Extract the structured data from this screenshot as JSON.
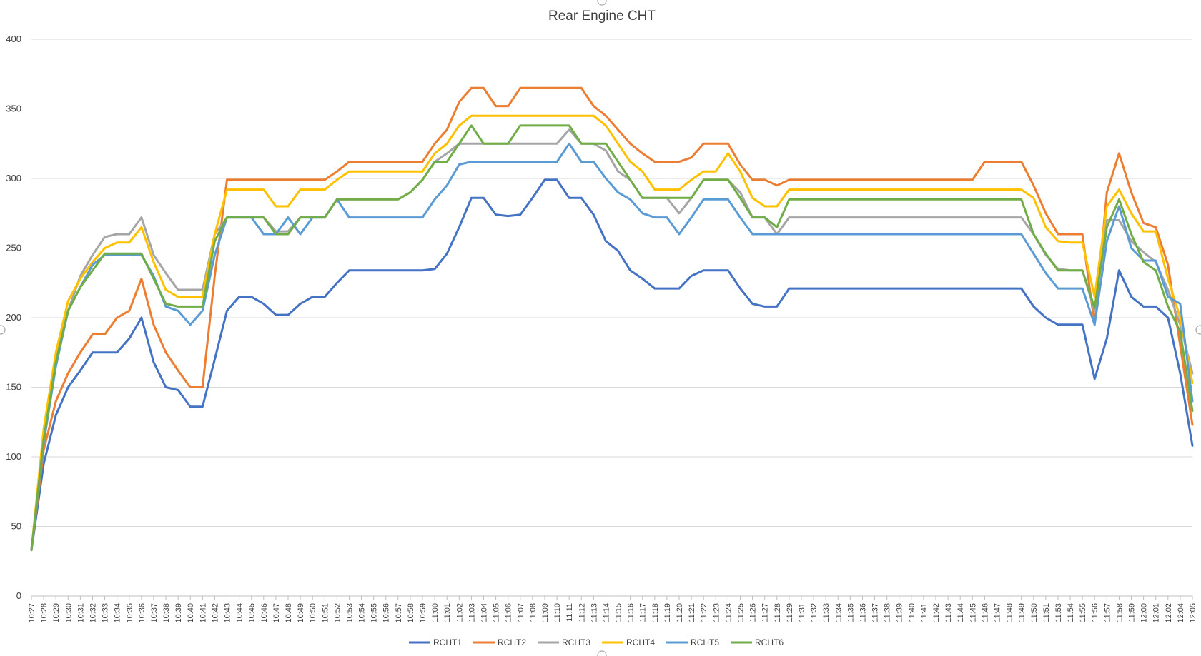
{
  "chart_data": {
    "type": "line",
    "title": "Rear Engine CHT",
    "xlabel": "",
    "ylabel": "",
    "ylim": [
      0,
      400
    ],
    "yticks": [
      0,
      50,
      100,
      150,
      200,
      250,
      300,
      350,
      400
    ],
    "grid": true,
    "legend_position": "bottom",
    "categories": [
      "10:27",
      "10:28",
      "10:29",
      "10:30",
      "10:31",
      "10:32",
      "10:33",
      "10:34",
      "10:35",
      "10:36",
      "10:37",
      "10:38",
      "10:39",
      "10:40",
      "10:41",
      "10:42",
      "10:43",
      "10:44",
      "10:45",
      "10:46",
      "10:47",
      "10:48",
      "10:49",
      "10:50",
      "10:51",
      "10:52",
      "10:53",
      "10:54",
      "10:55",
      "10:56",
      "10:57",
      "10:58",
      "10:59",
      "11:00",
      "11:01",
      "11:02",
      "11:03",
      "11:04",
      "11:05",
      "11:06",
      "11:07",
      "11:08",
      "11:09",
      "11:10",
      "11:11",
      "11:12",
      "11:13",
      "11:14",
      "11:15",
      "11:16",
      "11:17",
      "11:18",
      "11:19",
      "11:20",
      "11:21",
      "11:22",
      "11:23",
      "11:24",
      "11:25",
      "11:26",
      "11:27",
      "11:28",
      "11:29",
      "11:31",
      "11:32",
      "11:33",
      "11:34",
      "11:35",
      "11:36",
      "11:37",
      "11:38",
      "11:39",
      "11:40",
      "11:41",
      "11:42",
      "11:43",
      "11:44",
      "11:45",
      "11:46",
      "11:47",
      "11:48",
      "11:49",
      "11:50",
      "11:51",
      "11:53",
      "11:54",
      "11:55",
      "11:56",
      "11:57",
      "11:58",
      "11:59",
      "12:00",
      "12:01",
      "12:02",
      "12:04",
      "12:05"
    ],
    "series": [
      {
        "name": "RCHT1",
        "color": "#4472c4",
        "values": [
          33,
          95,
          130,
          150,
          162,
          175,
          175,
          175,
          185,
          200,
          168,
          150,
          148,
          136,
          136,
          170,
          205,
          215,
          215,
          210,
          202,
          202,
          210,
          215,
          215,
          225,
          234,
          234,
          234,
          234,
          234,
          234,
          234,
          235,
          246,
          265,
          286,
          286,
          274,
          273,
          274,
          286,
          299,
          299,
          286,
          286,
          274,
          255,
          248,
          234,
          228,
          221,
          221,
          221,
          230,
          234,
          234,
          234,
          221,
          210,
          208,
          208,
          221,
          221,
          221,
          221,
          221,
          221,
          221,
          221,
          221,
          221,
          221,
          221,
          221,
          221,
          221,
          221,
          221,
          221,
          221,
          221,
          208,
          200,
          195,
          195,
          195,
          156,
          185,
          234,
          215,
          208,
          208,
          200,
          160,
          108
        ]
      },
      {
        "name": "RCHT2",
        "color": "#ed7d31",
        "values": [
          33,
          105,
          140,
          160,
          175,
          188,
          188,
          200,
          205,
          228,
          195,
          175,
          162,
          150,
          150,
          230,
          299,
          299,
          299,
          299,
          299,
          299,
          299,
          299,
          299,
          305,
          312,
          312,
          312,
          312,
          312,
          312,
          312,
          325,
          335,
          355,
          365,
          365,
          352,
          352,
          365,
          365,
          365,
          365,
          365,
          365,
          352,
          345,
          335,
          325,
          318,
          312,
          312,
          312,
          315,
          325,
          325,
          325,
          310,
          299,
          299,
          295,
          299,
          299,
          299,
          299,
          299,
          299,
          299,
          299,
          299,
          299,
          299,
          299,
          299,
          299,
          299,
          299,
          312,
          312,
          312,
          312,
          295,
          275,
          260,
          260,
          260,
          195,
          290,
          318,
          290,
          268,
          265,
          238,
          180,
          123
        ]
      },
      {
        "name": "RCHT3",
        "color": "#a5a5a5",
        "values": [
          33,
          115,
          170,
          205,
          230,
          245,
          258,
          260,
          260,
          272,
          245,
          232,
          220,
          220,
          220,
          260,
          272,
          272,
          272,
          272,
          262,
          262,
          272,
          272,
          272,
          285,
          285,
          285,
          285,
          285,
          285,
          290,
          299,
          312,
          318,
          325,
          325,
          325,
          325,
          325,
          325,
          325,
          325,
          325,
          335,
          325,
          325,
          320,
          305,
          299,
          286,
          286,
          286,
          275,
          286,
          299,
          299,
          299,
          290,
          272,
          272,
          260,
          272,
          272,
          272,
          272,
          272,
          272,
          272,
          272,
          272,
          272,
          272,
          272,
          272,
          272,
          272,
          272,
          272,
          272,
          272,
          272,
          260,
          245,
          235,
          234,
          234,
          205,
          270,
          270,
          255,
          247,
          240,
          220,
          195,
          160
        ]
      },
      {
        "name": "RCHT4",
        "color": "#ffc000",
        "values": [
          33,
          120,
          175,
          212,
          228,
          240,
          250,
          254,
          254,
          265,
          240,
          220,
          215,
          215,
          215,
          260,
          292,
          292,
          292,
          292,
          280,
          280,
          292,
          292,
          292,
          299,
          305,
          305,
          305,
          305,
          305,
          305,
          305,
          318,
          325,
          338,
          345,
          345,
          345,
          345,
          345,
          345,
          345,
          345,
          345,
          345,
          345,
          338,
          325,
          312,
          305,
          292,
          292,
          292,
          299,
          305,
          305,
          318,
          305,
          286,
          280,
          280,
          292,
          292,
          292,
          292,
          292,
          292,
          292,
          292,
          292,
          292,
          292,
          292,
          292,
          292,
          292,
          292,
          292,
          292,
          292,
          292,
          286,
          265,
          255,
          254,
          254,
          215,
          280,
          292,
          275,
          262,
          262,
          228,
          200,
          153
        ]
      },
      {
        "name": "RCHT5",
        "color": "#5b9bd5",
        "values": [
          33,
          110,
          165,
          205,
          222,
          238,
          245,
          245,
          245,
          245,
          230,
          208,
          205,
          195,
          205,
          245,
          272,
          272,
          272,
          260,
          260,
          272,
          260,
          272,
          272,
          285,
          272,
          272,
          272,
          272,
          272,
          272,
          272,
          285,
          295,
          310,
          312,
          312,
          312,
          312,
          312,
          312,
          312,
          312,
          325,
          312,
          312,
          300,
          290,
          285,
          275,
          272,
          272,
          260,
          272,
          285,
          285,
          285,
          272,
          260,
          260,
          260,
          260,
          260,
          260,
          260,
          260,
          260,
          260,
          260,
          260,
          260,
          260,
          260,
          260,
          260,
          260,
          260,
          260,
          260,
          260,
          260,
          246,
          232,
          221,
          221,
          221,
          195,
          255,
          280,
          250,
          241,
          241,
          215,
          210,
          140
        ]
      },
      {
        "name": "RCHT6",
        "color": "#70ad47",
        "values": [
          33,
          112,
          168,
          205,
          222,
          234,
          246,
          246,
          246,
          246,
          228,
          210,
          208,
          208,
          208,
          255,
          272,
          272,
          272,
          272,
          260,
          260,
          272,
          272,
          272,
          285,
          285,
          285,
          285,
          285,
          285,
          290,
          299,
          312,
          312,
          325,
          338,
          325,
          325,
          325,
          338,
          338,
          338,
          338,
          338,
          325,
          325,
          325,
          312,
          299,
          286,
          286,
          286,
          286,
          286,
          299,
          299,
          299,
          286,
          272,
          272,
          265,
          285,
          285,
          285,
          285,
          285,
          285,
          285,
          285,
          285,
          285,
          285,
          285,
          285,
          285,
          285,
          285,
          285,
          285,
          285,
          285,
          260,
          246,
          234,
          234,
          234,
          207,
          265,
          285,
          260,
          240,
          234,
          208,
          190,
          133
        ]
      }
    ]
  }
}
